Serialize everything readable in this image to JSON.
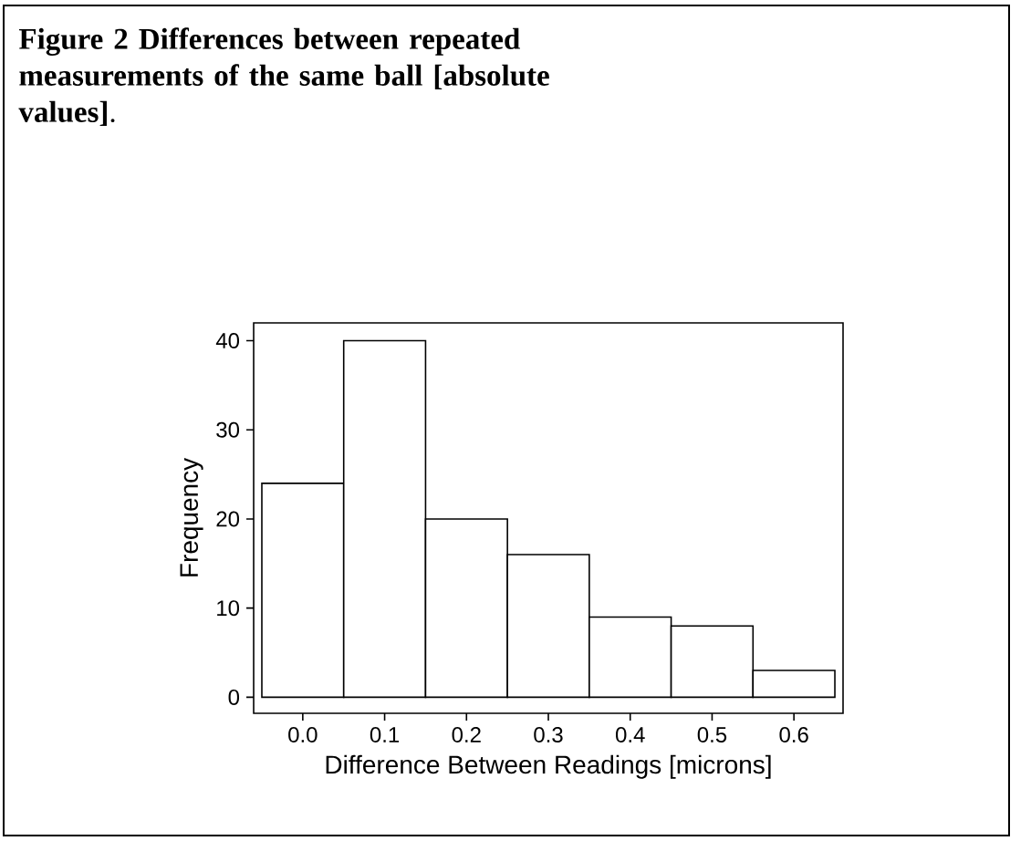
{
  "chart_data": {
    "type": "histogram",
    "title": "**Figure 2 Differences between repeated measurements of the same ball [absolute values]**.",
    "xlabel": "Difference Between Readings [microns]",
    "ylabel": "Frequency",
    "bins": [
      -0.05,
      0.05,
      0.15,
      0.25,
      0.35,
      0.45,
      0.55,
      0.65
    ],
    "values": [
      24,
      40,
      20,
      16,
      9,
      8,
      3
    ],
    "color": "#ffffff",
    "xlim": [
      -0.06,
      0.66
    ],
    "ylim": [
      -1.8,
      42
    ],
    "xticks": [
      {
        "value": 0,
        "label": "0.0"
      },
      {
        "value": 0.1,
        "label": "0.1"
      },
      {
        "value": 0.2,
        "label": "0.2"
      },
      {
        "value": 0.3,
        "label": "0.3"
      },
      {
        "value": 0.4,
        "label": "0.4"
      },
      {
        "value": 0.5,
        "label": "0.5"
      },
      {
        "value": 0.6,
        "label": "0.6"
      }
    ],
    "yticks": [
      0,
      10,
      20,
      30,
      40
    ],
    "grid": false
  }
}
